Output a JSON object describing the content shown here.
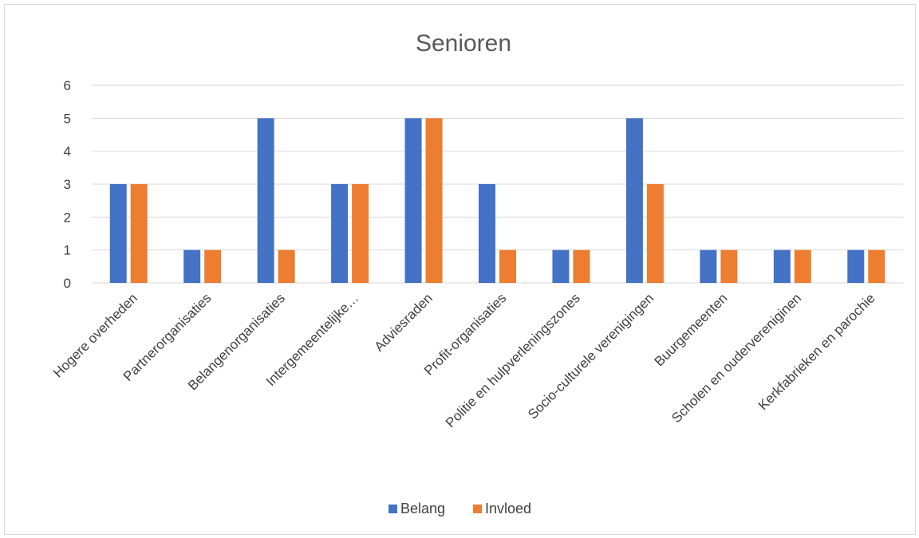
{
  "chart_data": {
    "type": "bar",
    "title": "Senioren",
    "xlabel": "",
    "ylabel": "",
    "ylim": [
      0,
      6
    ],
    "yticks": [
      0,
      1,
      2,
      3,
      4,
      5,
      6
    ],
    "grid": true,
    "legend_position": "bottom",
    "categories": [
      "Hogere overheden",
      "Partnerorganisaties",
      "Belangenorganisaties",
      "Intergemeentelijke…",
      "Adviesraden",
      "Profit-organisaties",
      "Politie en hulpverleningszones",
      "Socio-culturele verenigingen",
      "Buurgemeenten",
      "Scholen en oudervereniginen",
      "Kerkfabrieken en parochie"
    ],
    "series": [
      {
        "name": "Belang",
        "color": "#4472c4",
        "values": [
          3,
          1,
          5,
          3,
          5,
          3,
          1,
          5,
          1,
          1,
          1
        ]
      },
      {
        "name": "Invloed",
        "color": "#ed7d31",
        "values": [
          3,
          1,
          1,
          3,
          5,
          1,
          1,
          3,
          1,
          1,
          1
        ]
      }
    ]
  }
}
